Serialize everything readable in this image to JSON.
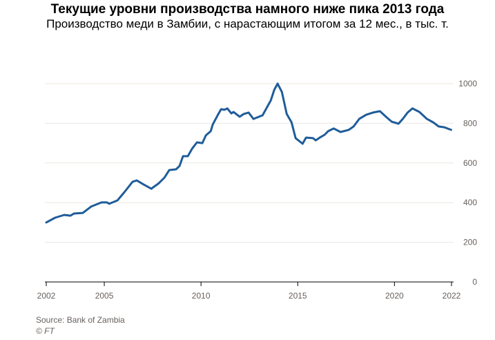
{
  "chart_data": {
    "type": "line",
    "title": "Текущие уровни производства намного ниже пика 2013 года",
    "subtitle": "Производство меди в Замбии, с нарастающим итогом за 12 мес., в тыс. т.",
    "xlabel": "",
    "ylabel": "",
    "xlim": [
      2002,
      2022.95
    ],
    "ylim": [
      0,
      1000
    ],
    "grid": true,
    "yticks": [
      0,
      200,
      400,
      600,
      800,
      1000
    ],
    "xticks": [
      {
        "value": 2002,
        "label": "2002"
      },
      {
        "value": 2005,
        "label": "2005"
      },
      {
        "value": 2010,
        "label": "2010"
      },
      {
        "value": 2015,
        "label": "2015"
      },
      {
        "value": 2020,
        "label": "2020"
      },
      {
        "value": 2022.95,
        "label": "2022"
      }
    ],
    "series": [
      {
        "name": "Производство меди",
        "color": "#1f5c99",
        "x": [
          2002.0,
          2002.46,
          2002.93,
          2003.25,
          2003.43,
          2003.89,
          2004.32,
          2004.86,
          2005.14,
          2005.25,
          2005.68,
          2006.04,
          2006.46,
          2006.68,
          2007.04,
          2007.43,
          2007.82,
          2008.11,
          2008.36,
          2008.71,
          2008.89,
          2009.07,
          2009.32,
          2009.54,
          2009.79,
          2010.07,
          2010.25,
          2010.5,
          2010.61,
          2010.86,
          2011.04,
          2011.21,
          2011.36,
          2011.57,
          2011.68,
          2012.0,
          2012.21,
          2012.46,
          2012.71,
          2013.0,
          2013.18,
          2013.61,
          2013.79,
          2013.96,
          2014.18,
          2014.43,
          2014.68,
          2014.89,
          2015.25,
          2015.43,
          2015.79,
          2015.93,
          2016.14,
          2016.39,
          2016.57,
          2016.86,
          2017.21,
          2017.64,
          2017.89,
          2018.18,
          2018.54,
          2018.89,
          2019.25,
          2019.61,
          2019.86,
          2020.21,
          2020.43,
          2020.68,
          2020.93,
          2021.29,
          2021.68,
          2022.0,
          2022.29,
          2022.57,
          2022.93
        ],
        "y": [
          300,
          324,
          338,
          334,
          345,
          348,
          380,
          401,
          401,
          394,
          411,
          453,
          505,
          512,
          491,
          470,
          498,
          526,
          564,
          568,
          585,
          634,
          634,
          672,
          704,
          700,
          739,
          760,
          794,
          840,
          871,
          868,
          875,
          850,
          857,
          833,
          847,
          854,
          822,
          833,
          840,
          916,
          969,
          1000,
          958,
          847,
          805,
          725,
          697,
          728,
          725,
          714,
          728,
          742,
          760,
          774,
          756,
          767,
          784,
          822,
          843,
          854,
          861,
          829,
          808,
          798,
          822,
          854,
          875,
          857,
          822,
          805,
          784,
          780,
          767
        ]
      }
    ]
  },
  "footer": {
    "source": "Source: Bank of Zambia",
    "copyright": "© FT"
  }
}
